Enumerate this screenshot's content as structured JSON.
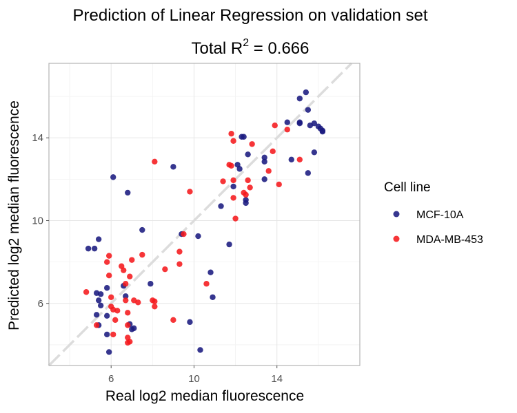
{
  "chart_data": {
    "type": "scatter",
    "title": "Prediction of Linear Regression on validation set",
    "subtitle_prefix": "Total R",
    "subtitle_sup": "2",
    "subtitle_suffix": " = 0.666",
    "xlabel": "Real log2 median fluorescence",
    "ylabel": "Predicted log2 median fluorescence",
    "xlim": [
      3.0,
      18.0
    ],
    "ylim": [
      3.0,
      17.6
    ],
    "x_ticks": [
      6,
      10,
      14
    ],
    "y_ticks": [
      6,
      10,
      14
    ],
    "grid": true,
    "reference_line": "identity (y = x), dashed grey",
    "legend": {
      "title": "Cell line",
      "position": "right"
    },
    "series": [
      {
        "name": "MCF-10A",
        "color": "#1a1a80",
        "points": [
          [
            4.9,
            8.65
          ],
          [
            5.2,
            8.65
          ],
          [
            5.3,
            6.5
          ],
          [
            5.3,
            5.45
          ],
          [
            5.4,
            9.1
          ],
          [
            5.4,
            6.15
          ],
          [
            5.4,
            4.95
          ],
          [
            5.5,
            6.45
          ],
          [
            5.5,
            5.9
          ],
          [
            5.8,
            6.75
          ],
          [
            5.8,
            5.4
          ],
          [
            5.8,
            4.5
          ],
          [
            5.9,
            3.65
          ],
          [
            6.1,
            12.1
          ],
          [
            6.6,
            6.85
          ],
          [
            6.7,
            6.35
          ],
          [
            6.8,
            11.35
          ],
          [
            6.9,
            5.0
          ],
          [
            7.0,
            4.75
          ],
          [
            7.1,
            4.8
          ],
          [
            7.5,
            9.55
          ],
          [
            7.9,
            6.95
          ],
          [
            9.0,
            12.6
          ],
          [
            9.4,
            9.35
          ],
          [
            9.8,
            5.1
          ],
          [
            10.2,
            9.25
          ],
          [
            10.3,
            3.75
          ],
          [
            10.8,
            7.5
          ],
          [
            10.9,
            6.3
          ],
          [
            11.3,
            10.7
          ],
          [
            11.7,
            8.85
          ],
          [
            11.9,
            11.65
          ],
          [
            12.1,
            12.7
          ],
          [
            12.2,
            12.5
          ],
          [
            12.3,
            14.05
          ],
          [
            12.4,
            14.05
          ],
          [
            12.5,
            11.0
          ],
          [
            12.5,
            10.85
          ],
          [
            12.6,
            13.2
          ],
          [
            13.4,
            13.05
          ],
          [
            13.4,
            12.85
          ],
          [
            13.4,
            12.0
          ],
          [
            14.5,
            14.75
          ],
          [
            14.7,
            12.95
          ],
          [
            15.1,
            15.9
          ],
          [
            15.1,
            14.75
          ],
          [
            15.1,
            14.7
          ],
          [
            15.4,
            16.2
          ],
          [
            15.5,
            15.35
          ],
          [
            15.5,
            12.3
          ],
          [
            15.6,
            14.6
          ],
          [
            15.8,
            14.7
          ],
          [
            15.8,
            13.3
          ],
          [
            16.0,
            14.55
          ],
          [
            16.1,
            14.45
          ],
          [
            16.2,
            14.35
          ],
          [
            16.2,
            14.3
          ]
        ]
      },
      {
        "name": "MDA-MB-453",
        "color": "#f5191c",
        "points": [
          [
            4.8,
            6.55
          ],
          [
            5.3,
            4.95
          ],
          [
            5.9,
            8.3
          ],
          [
            5.8,
            8.0
          ],
          [
            5.9,
            7.35
          ],
          [
            6.0,
            6.3
          ],
          [
            6.1,
            4.5
          ],
          [
            6.0,
            5.85
          ],
          [
            6.1,
            5.7
          ],
          [
            6.2,
            5.2
          ],
          [
            6.3,
            5.65
          ],
          [
            6.5,
            7.8
          ],
          [
            6.6,
            7.6
          ],
          [
            6.7,
            6.95
          ],
          [
            6.7,
            6.15
          ],
          [
            6.8,
            5.55
          ],
          [
            6.8,
            4.95
          ],
          [
            6.8,
            4.35
          ],
          [
            6.8,
            4.1
          ],
          [
            6.9,
            7.3
          ],
          [
            6.9,
            4.15
          ],
          [
            7.0,
            8.1
          ],
          [
            7.1,
            6.15
          ],
          [
            7.3,
            6.05
          ],
          [
            7.5,
            8.35
          ],
          [
            8.0,
            6.15
          ],
          [
            8.1,
            6.1
          ],
          [
            8.1,
            5.85
          ],
          [
            8.1,
            12.85
          ],
          [
            8.6,
            7.65
          ],
          [
            9.0,
            5.2
          ],
          [
            9.3,
            8.5
          ],
          [
            9.3,
            7.9
          ],
          [
            9.5,
            9.35
          ],
          [
            9.8,
            11.4
          ],
          [
            10.6,
            6.95
          ],
          [
            11.4,
            11.9
          ],
          [
            11.7,
            12.7
          ],
          [
            11.8,
            12.65
          ],
          [
            11.8,
            14.2
          ],
          [
            11.9,
            13.85
          ],
          [
            11.9,
            11.95
          ],
          [
            11.9,
            11.1
          ],
          [
            12.0,
            10.1
          ],
          [
            12.4,
            11.35
          ],
          [
            12.5,
            11.25
          ],
          [
            12.6,
            11.95
          ],
          [
            12.7,
            11.6
          ],
          [
            12.8,
            13.7
          ],
          [
            13.6,
            12.4
          ],
          [
            13.8,
            13.35
          ],
          [
            13.9,
            14.6
          ],
          [
            14.1,
            11.75
          ],
          [
            14.5,
            14.4
          ],
          [
            15.1,
            12.95
          ]
        ]
      }
    ]
  }
}
